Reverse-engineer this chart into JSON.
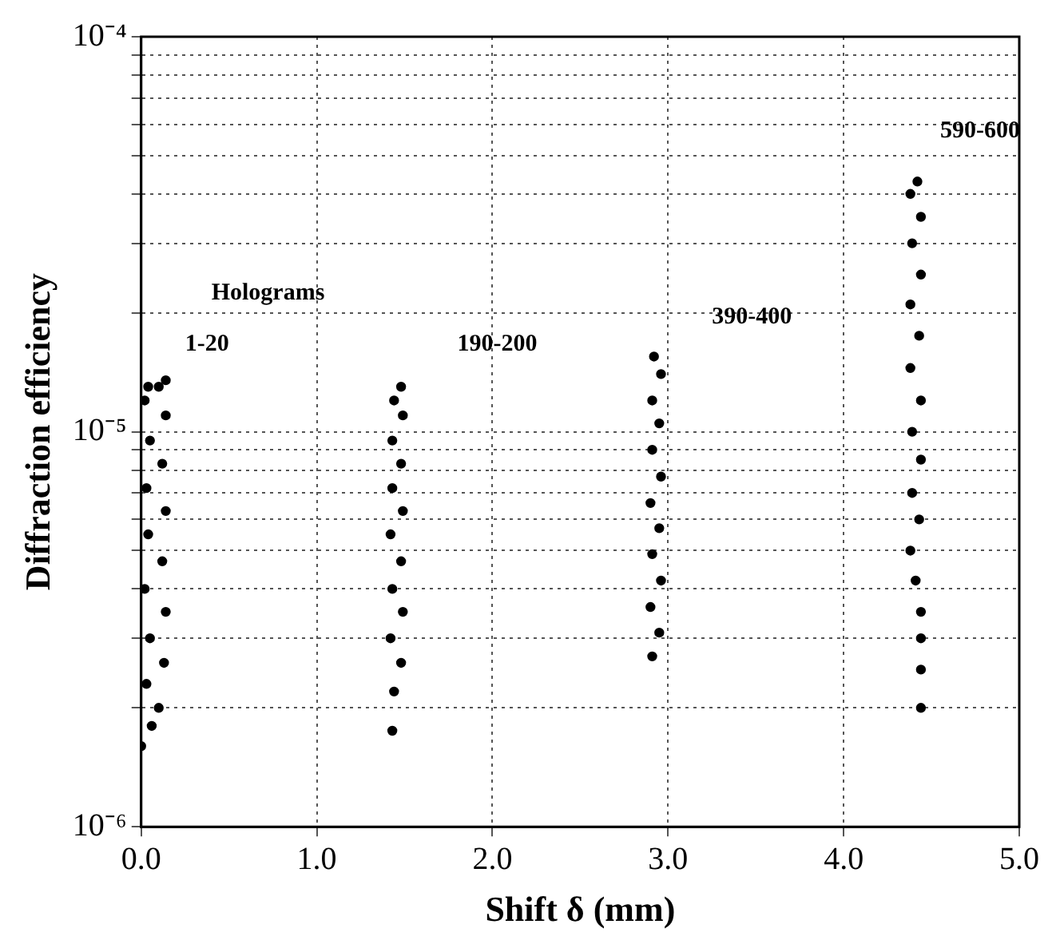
{
  "chart_data": {
    "type": "scatter",
    "xlabel": "Shift δ (mm)",
    "ylabel": "Diffraction efficiency",
    "log": "y",
    "grid": true,
    "marker": "circle",
    "xlim": [
      0,
      5
    ],
    "xticks": [
      {
        "value": 0,
        "label": "0.0"
      },
      {
        "value": 1,
        "label": "1.0"
      },
      {
        "value": 2,
        "label": "2.0"
      },
      {
        "value": 3,
        "label": "3.0"
      },
      {
        "value": 4,
        "label": "4.0"
      },
      {
        "value": 5,
        "label": "5.0"
      }
    ],
    "ylim": [
      1e-06,
      0.0001
    ],
    "yticks": [
      {
        "value": 1e-06,
        "label": "10⁻⁶"
      },
      {
        "value": 2e-06,
        "label": null
      },
      {
        "value": 3e-06,
        "label": null
      },
      {
        "value": 4e-06,
        "label": null
      },
      {
        "value": 5e-06,
        "label": null
      },
      {
        "value": 6e-06,
        "label": null
      },
      {
        "value": 7e-06,
        "label": null
      },
      {
        "value": 8e-06,
        "label": null
      },
      {
        "value": 9e-06,
        "label": null
      },
      {
        "value": 1e-05,
        "label": "10⁻⁵"
      },
      {
        "value": 2e-05,
        "label": null
      },
      {
        "value": 3e-05,
        "label": null
      },
      {
        "value": 4e-05,
        "label": null
      },
      {
        "value": 5e-05,
        "label": null
      },
      {
        "value": 6e-05,
        "label": null
      },
      {
        "value": 7e-05,
        "label": null
      },
      {
        "value": 8e-05,
        "label": null
      },
      {
        "value": 9e-05,
        "label": null
      },
      {
        "value": 0.0001,
        "label": "10⁻⁴"
      }
    ],
    "annotations": [
      "Holograms",
      "1-20",
      "190-200",
      "390-400",
      "590-600"
    ],
    "series": [
      {
        "color": "#000000",
        "x": [
          0.0,
          0.06,
          0.1,
          0.03,
          0.13,
          0.05,
          0.14,
          0.02,
          0.12,
          0.04,
          0.14,
          0.03,
          0.12,
          0.05,
          0.14,
          0.02,
          0.1,
          0.14,
          0.04,
          1.43,
          1.44,
          1.48,
          1.42,
          1.49,
          1.43,
          1.48,
          1.42,
          1.49,
          1.43,
          1.48,
          1.43,
          1.49,
          1.44,
          1.48,
          2.91,
          2.95,
          2.9,
          2.96,
          2.91,
          2.95,
          2.9,
          2.96,
          2.91,
          2.95,
          2.91,
          2.96,
          2.92,
          4.44,
          4.44,
          4.44,
          4.44,
          4.41,
          4.38,
          4.43,
          4.39,
          4.44,
          4.39,
          4.44,
          4.38,
          4.43,
          4.38,
          4.44,
          4.39,
          4.44,
          4.38,
          4.42
        ],
        "values": [
          1.6e-06,
          1.8e-06,
          2e-06,
          2.3e-06,
          2.6e-06,
          3e-06,
          3.5e-06,
          4e-06,
          4.7e-06,
          5.5e-06,
          6.3e-06,
          7.2e-06,
          8.3e-06,
          9.5e-06,
          1.1e-05,
          1.2e-05,
          1.3e-05,
          1.35e-05,
          1.3e-05,
          1.75e-06,
          2.2e-06,
          2.6e-06,
          3e-06,
          3.5e-06,
          4e-06,
          4.7e-06,
          5.5e-06,
          6.3e-06,
          7.2e-06,
          8.3e-06,
          9.5e-06,
          1.1e-05,
          1.2e-05,
          1.3e-05,
          2.7e-06,
          3.1e-06,
          3.6e-06,
          4.2e-06,
          4.9e-06,
          5.7e-06,
          6.6e-06,
          7.7e-06,
          9e-06,
          1.05e-05,
          1.2e-05,
          1.4e-05,
          1.55e-05,
          2e-06,
          2.5e-06,
          3e-06,
          3.5e-06,
          4.2e-06,
          5e-06,
          6e-06,
          7e-06,
          8.5e-06,
          1e-05,
          1.2e-05,
          1.45e-05,
          1.75e-05,
          2.1e-05,
          2.5e-05,
          3e-05,
          3.5e-05,
          4e-05,
          4.3e-05
        ]
      }
    ]
  }
}
